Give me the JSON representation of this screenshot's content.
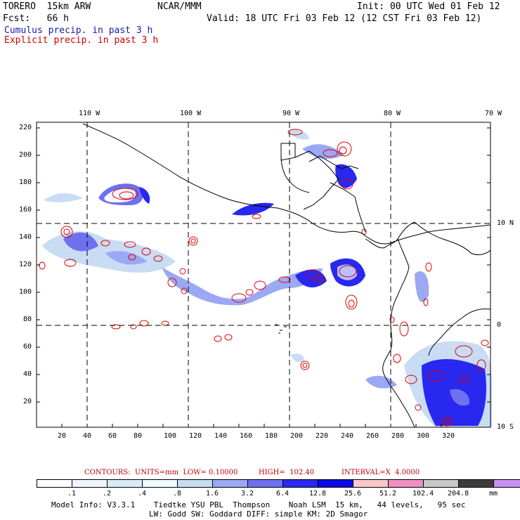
{
  "header": {
    "model": "TORERO  15km ARW",
    "institution": "NCAR/MMM",
    "init": "Init: 00 UTC Wed 01 Feb 12",
    "fcst": "Fcst:   66 h",
    "valid": "Valid: 18 UTC Fri 03 Feb 12 (12 CST Fri 03 Feb 12)",
    "field1": "Cumulus precip. in past 3 h",
    "field2": "Explicit precip. in past 3 h"
  },
  "map": {
    "lon_labels": [
      "110 W",
      "100 W",
      "90 W",
      "80 W",
      "70 W"
    ],
    "lat_labels": [
      "10 N",
      "0",
      "10 S"
    ],
    "y_ticks": [
      "220",
      "200",
      "180",
      "160",
      "140",
      "120",
      "100",
      "80",
      "60",
      "40",
      "20"
    ],
    "x_ticks": [
      "20",
      "40",
      "60",
      "80",
      "100",
      "120",
      "140",
      "160",
      "180",
      "200",
      "220",
      "240",
      "260",
      "280",
      "300",
      "320"
    ]
  },
  "contours": {
    "label": "CONTOURS:  UNITS=mm  LOW= 0.10000",
    "high": "HIGH=  102.40",
    "interval": "INTERVAL=X  4.0000"
  },
  "colorbar": {
    "colors": [
      "#ffffff",
      "#f0f4ff",
      "#d8ecf8",
      "#eefcfc",
      "#c8dcf4",
      "#9ba8f4",
      "#6e70f0",
      "#2828f0",
      "#0a0ae6",
      "#f8c8c8",
      "#f090c0",
      "#c8c8c8",
      "#3c3c3c",
      "#c890f0"
    ],
    "labels": [
      ".1",
      ".2",
      ".4",
      ".8",
      "1.6",
      "3.2",
      "6.4",
      "12.8",
      "25.6",
      "51.2",
      "102.4",
      "204.8"
    ],
    "units": "mm"
  },
  "footer": {
    "line1": "Model Info: V3.3.1    Tiedtke YSU PBL  Thompson    Noah LSM  15 km,   44 levels,   95 sec",
    "line2": "LW: Godd SW: Goddard DIFF: simple KM: 2D Smagor"
  }
}
